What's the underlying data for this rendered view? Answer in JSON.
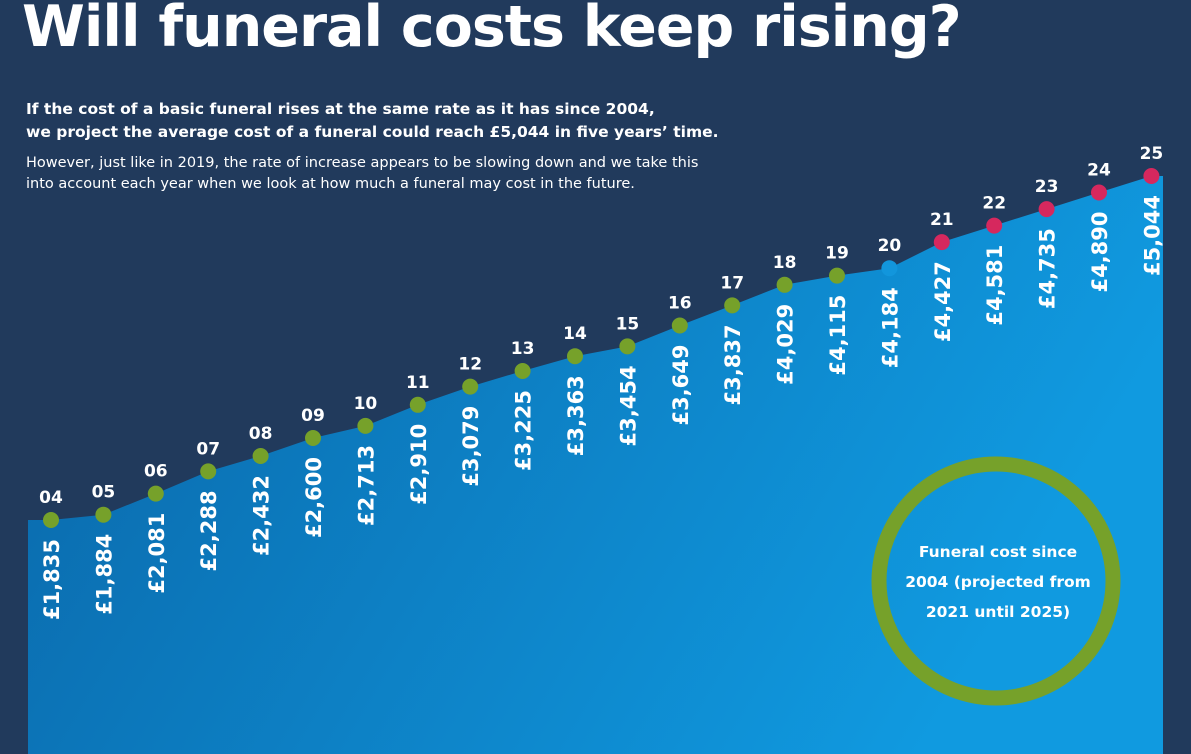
{
  "title": "Will funeral costs keep rising?",
  "intro": [
    "If the cost of a basic funeral rises at the same rate as it has since 2004,",
    "we project the average cost of a funeral could reach £5,044 in five years’ time."
  ],
  "note": [
    "However, just like in 2019, the rate of increase appears to be slowing down and we take this",
    "into account each year when we look at how much a funeral may cost in the future."
  ],
  "circle_label": [
    "Funeral cost since",
    "2004 (projected from",
    "2021 until 2025)"
  ],
  "colors": {
    "background": "#213a5c",
    "area_top": "#0a6fb4",
    "area_bottom": "#0f8fd6",
    "historic": "#76a12a",
    "current": "#1296dc",
    "projected": "#d6285e",
    "text": "#ffffff"
  },
  "chart_data": {
    "type": "area",
    "x": [
      "04",
      "05",
      "06",
      "07",
      "08",
      "09",
      "10",
      "11",
      "12",
      "13",
      "14",
      "15",
      "16",
      "17",
      "18",
      "19",
      "20",
      "21",
      "22",
      "23",
      "24",
      "25"
    ],
    "values": [
      1835,
      1884,
      2081,
      2288,
      2432,
      2600,
      2713,
      2910,
      3079,
      3225,
      3363,
      3454,
      3649,
      3837,
      4029,
      4115,
      4184,
      4427,
      4581,
      4735,
      4890,
      5044
    ],
    "value_labels": [
      "£1,835",
      "£1,884",
      "£2,081",
      "£2,288",
      "£2,432",
      "£2,600",
      "£2,713",
      "£2,910",
      "£3,079",
      "£3,225",
      "£3,363",
      "£3,454",
      "£3,649",
      "£3,837",
      "£4,029",
      "£4,115",
      "£4,184",
      "£4,427",
      "£4,581",
      "£4,735",
      "£4,890",
      "£5,044"
    ],
    "point_status": [
      "historic",
      "historic",
      "historic",
      "historic",
      "historic",
      "historic",
      "historic",
      "historic",
      "historic",
      "historic",
      "historic",
      "historic",
      "historic",
      "historic",
      "historic",
      "historic",
      "current",
      "projected",
      "projected",
      "projected",
      "projected",
      "projected"
    ],
    "title": "Will funeral costs keep rising?",
    "xlabel": "",
    "ylabel": "",
    "grid": false,
    "legend": "none"
  }
}
